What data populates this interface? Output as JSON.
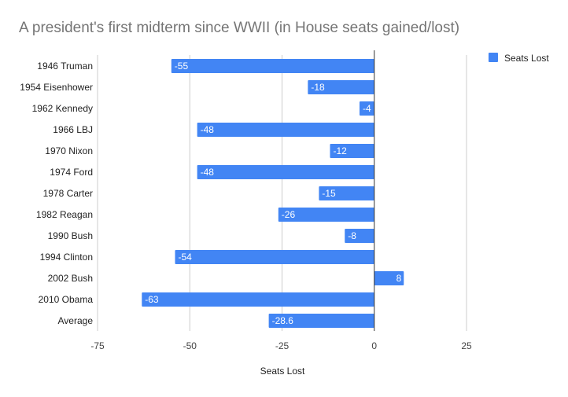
{
  "chart_data": {
    "type": "bar",
    "orientation": "horizontal",
    "title": "A president's first midterm since WWII (in House seats gained/lost)",
    "xlabel": "Seats Lost",
    "ylabel": "",
    "categories": [
      "1946 Truman",
      "1954 Eisenhower",
      "1962 Kennedy",
      "1966 LBJ",
      "1970 Nixon",
      "1974 Ford",
      "1978 Carter",
      "1982 Reagan",
      "1990 Bush",
      "1994 Clinton",
      "2002 Bush",
      "2010 Obama",
      "Average"
    ],
    "series": [
      {
        "name": "Seats Lost",
        "values": [
          -55,
          -18,
          -4,
          -48,
          -12,
          -48,
          -15,
          -26,
          -8,
          -54,
          8,
          -63,
          -28.6
        ],
        "labels": [
          "-55",
          "-18",
          "-4",
          "-48",
          "-12",
          "-48",
          "-15",
          "-26",
          "-8",
          "-54",
          "8",
          "-63",
          "-28.6"
        ],
        "color": "#4285F4"
      }
    ],
    "xlim": [
      -75,
      25
    ],
    "xticks": [
      -75,
      -50,
      -25,
      0,
      25
    ],
    "xtick_labels": [
      "-75",
      "-50",
      "-25",
      "0",
      "25"
    ],
    "grid": true,
    "legend_position": "top-right"
  }
}
